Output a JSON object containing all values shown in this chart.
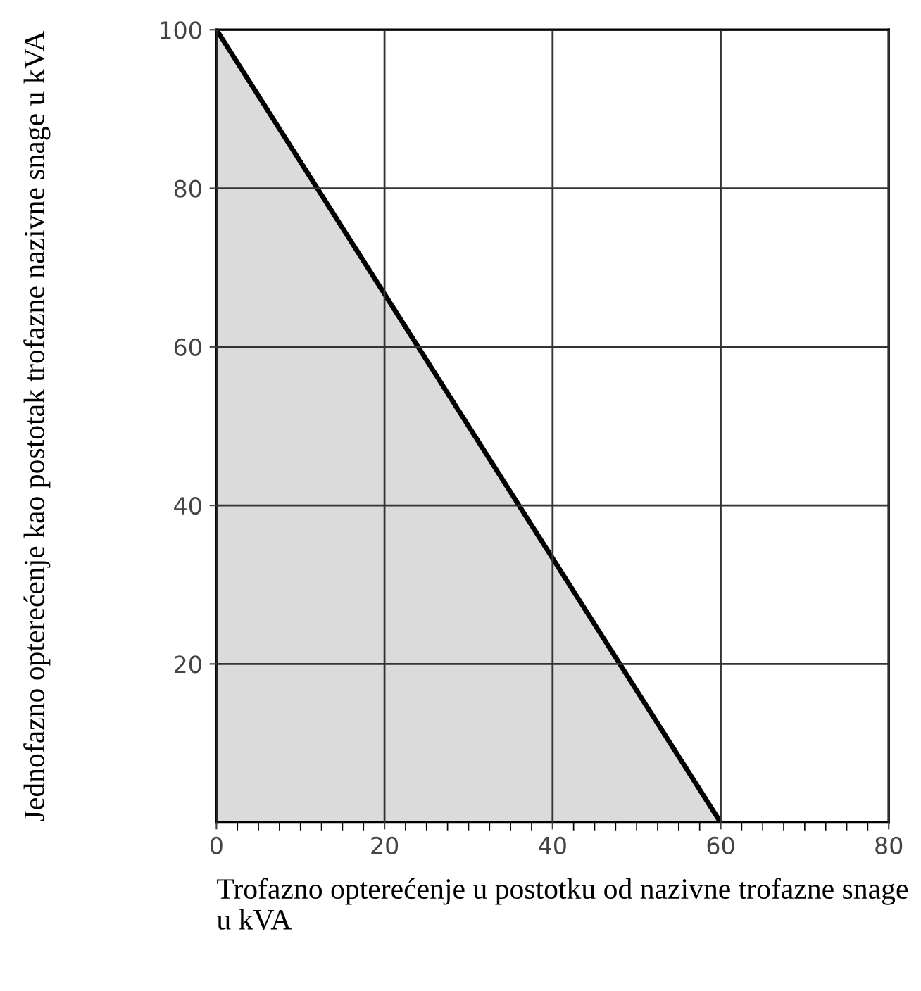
{
  "chart_data": {
    "type": "area",
    "xlabel": "Trofazno opterećenje u postotku od nazivne trofazne snage u kVA",
    "ylabel": "Jednofazno opterećenje kao postotak trofazne nazivne snage u kVA",
    "x": [
      0,
      60
    ],
    "series": [
      {
        "color": "#000000",
        "values": [
          100,
          0
        ]
      }
    ],
    "xlim": [
      0,
      80
    ],
    "ylim": [
      0,
      100
    ],
    "xticks": [
      0,
      20,
      40,
      60,
      80
    ],
    "yticks": [
      20,
      40,
      60,
      80,
      100
    ],
    "grid": true
  }
}
